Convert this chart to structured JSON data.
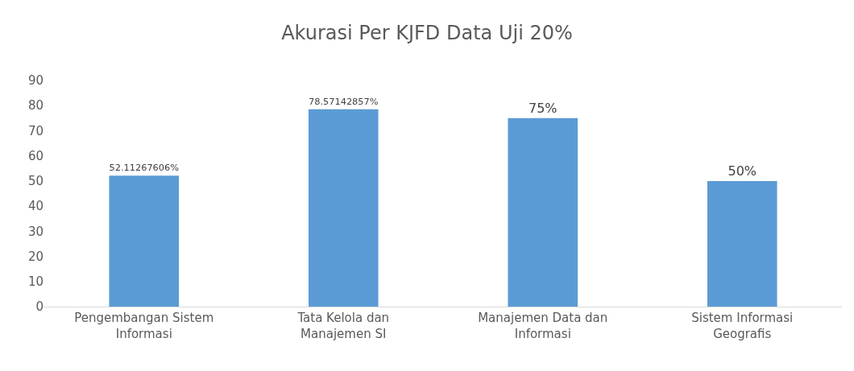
{
  "chart_data": {
    "type": "bar",
    "title": "Akurasi Per KJFD Data Uji 20%",
    "categories": [
      "Pengembangan Sistem Informasi",
      "Tata Kelola dan Manajemen SI",
      "Manajemen Data dan Informasi",
      "Sistem Informasi Geografis"
    ],
    "values": [
      52.11267606,
      78.57142857,
      75,
      50
    ],
    "value_labels": [
      "52.11267606%",
      "78.57142857%",
      "75%",
      "50%"
    ],
    "color": "#5b9bd5",
    "ylim": [
      0,
      90
    ],
    "yticks": [
      0,
      10,
      20,
      30,
      40,
      50,
      60,
      70,
      80,
      90
    ],
    "grid": false,
    "legend": false
  }
}
